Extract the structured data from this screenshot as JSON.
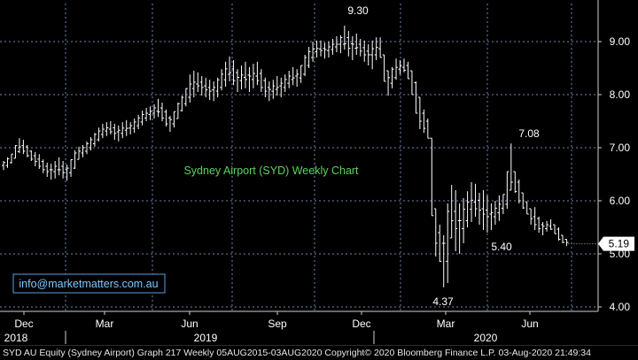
{
  "colors": {
    "background": "#000000",
    "bars": "#ffffff",
    "grid": "#6e86b8",
    "axis_text": "#ffffff",
    "chart_title": "#5dd15d",
    "url_text": "#7fc8ff",
    "url_border": "#5aa0e0",
    "last_price_box": "#ffffff",
    "last_price_text": "#000000"
  },
  "chart_data": {
    "type": "ohlc",
    "title": "Sydney Airport (SYD) Weekly Chart",
    "watermark": "info@marketmatters.com.au",
    "ylim": [
      3.85,
      9.45
    ],
    "y_ticks": [
      "4.00",
      "5.00",
      "6.00",
      "7.00",
      "8.00",
      "9.00"
    ],
    "y_tick_values": [
      4,
      5,
      6,
      7,
      8,
      9
    ],
    "last_price": "5.19",
    "last_price_value": 5.19,
    "x_month_labels": [
      "Dec",
      "Mar",
      "Jun",
      "Sep",
      "Dec",
      "Mar",
      "Jun"
    ],
    "x_year_labels": [
      "2018",
      "2019",
      "2020"
    ],
    "annotations": [
      {
        "text": "9.30",
        "value": 9.3,
        "week": 99
      },
      {
        "text": "7.08",
        "value": 7.08,
        "week": 149
      },
      {
        "text": "5.40",
        "value": 5.4,
        "week": 140
      },
      {
        "text": "4.37",
        "value": 4.37,
        "week": 127
      }
    ],
    "series": [
      {
        "bars": [
          [
            6.58,
            6.75
          ],
          [
            6.62,
            6.82
          ],
          [
            6.7,
            6.88
          ],
          [
            6.8,
            7.05
          ],
          [
            6.9,
            7.18
          ],
          [
            6.88,
            7.15
          ],
          [
            6.82,
            7.05
          ],
          [
            6.75,
            6.95
          ],
          [
            6.65,
            6.92
          ],
          [
            6.6,
            6.88
          ],
          [
            6.52,
            6.78
          ],
          [
            6.45,
            6.72
          ],
          [
            6.4,
            6.7
          ],
          [
            6.42,
            6.75
          ],
          [
            6.48,
            6.82
          ],
          [
            6.42,
            6.75
          ],
          [
            6.38,
            6.68
          ],
          [
            6.45,
            6.78
          ],
          [
            6.6,
            6.95
          ],
          [
            6.78,
            7.02
          ],
          [
            6.82,
            7.05
          ],
          [
            6.88,
            7.12
          ],
          [
            6.95,
            7.2
          ],
          [
            7.02,
            7.28
          ],
          [
            7.12,
            7.38
          ],
          [
            7.18,
            7.45
          ],
          [
            7.22,
            7.48
          ],
          [
            7.25,
            7.5
          ],
          [
            7.15,
            7.45
          ],
          [
            7.12,
            7.42
          ],
          [
            7.18,
            7.48
          ],
          [
            7.22,
            7.52
          ],
          [
            7.25,
            7.48
          ],
          [
            7.28,
            7.55
          ],
          [
            7.35,
            7.62
          ],
          [
            7.42,
            7.7
          ],
          [
            7.5,
            7.75
          ],
          [
            7.52,
            7.78
          ],
          [
            7.55,
            7.82
          ],
          [
            7.58,
            7.92
          ],
          [
            7.5,
            7.85
          ],
          [
            7.4,
            7.72
          ],
          [
            7.3,
            7.6
          ],
          [
            7.38,
            7.68
          ],
          [
            7.55,
            7.85
          ],
          [
            7.68,
            7.98
          ],
          [
            7.78,
            8.12
          ],
          [
            7.85,
            8.38
          ],
          [
            7.95,
            8.45
          ],
          [
            8.05,
            8.42
          ],
          [
            7.98,
            8.35
          ],
          [
            7.95,
            8.32
          ],
          [
            7.9,
            8.28
          ],
          [
            7.88,
            8.25
          ],
          [
            7.95,
            8.32
          ],
          [
            8.08,
            8.48
          ],
          [
            8.15,
            8.62
          ],
          [
            8.25,
            8.72
          ],
          [
            8.18,
            8.65
          ],
          [
            8.05,
            8.48
          ],
          [
            8.1,
            8.55
          ],
          [
            8.12,
            8.62
          ],
          [
            8.05,
            8.52
          ],
          [
            8.12,
            8.58
          ],
          [
            8.18,
            8.62
          ],
          [
            8.05,
            8.48
          ],
          [
            7.95,
            8.32
          ],
          [
            7.88,
            8.25
          ],
          [
            7.92,
            8.28
          ],
          [
            7.98,
            8.35
          ],
          [
            7.95,
            8.32
          ],
          [
            8.05,
            8.38
          ],
          [
            8.12,
            8.45
          ],
          [
            8.18,
            8.52
          ],
          [
            8.15,
            8.48
          ],
          [
            8.22,
            8.55
          ],
          [
            8.35,
            8.75
          ],
          [
            8.5,
            8.9
          ],
          [
            8.62,
            9.0
          ],
          [
            8.7,
            9.02
          ],
          [
            8.72,
            9.02
          ],
          [
            8.68,
            8.98
          ],
          [
            8.7,
            9.0
          ],
          [
            8.75,
            9.05
          ],
          [
            8.8,
            9.1
          ],
          [
            8.78,
            9.12
          ],
          [
            8.85,
            9.3
          ],
          [
            8.72,
            9.2
          ],
          [
            8.65,
            9.1
          ],
          [
            8.75,
            9.15
          ],
          [
            8.72,
            9.05
          ],
          [
            8.62,
            9.02
          ],
          [
            8.55,
            8.95
          ],
          [
            8.48,
            9.02
          ],
          [
            8.65,
            9.08
          ],
          [
            8.7,
            9.08
          ],
          [
            8.25,
            8.75
          ],
          [
            7.98,
            8.45
          ],
          [
            8.12,
            8.52
          ],
          [
            8.28,
            8.68
          ],
          [
            8.38,
            8.65
          ],
          [
            8.42,
            8.68
          ],
          [
            8.3,
            8.62
          ],
          [
            8.0,
            8.45
          ],
          [
            7.65,
            8.25
          ],
          [
            7.35,
            7.95
          ],
          [
            7.28,
            7.72
          ],
          [
            7.18,
            7.55
          ],
          [
            5.72,
            7.18
          ],
          [
            4.95,
            5.85
          ],
          [
            4.85,
            5.55
          ],
          [
            4.37,
            5.35
          ],
          [
            4.45,
            5.95
          ],
          [
            5.3,
            6.3
          ],
          [
            5.05,
            6.2
          ],
          [
            5.0,
            5.95
          ],
          [
            5.2,
            6.05
          ],
          [
            5.5,
            6.18
          ],
          [
            5.6,
            6.35
          ],
          [
            5.7,
            6.32
          ],
          [
            5.55,
            6.15
          ],
          [
            5.45,
            6.2
          ],
          [
            5.4,
            6.1
          ],
          [
            5.45,
            5.95
          ],
          [
            5.55,
            6.0
          ],
          [
            5.62,
            6.1
          ],
          [
            5.75,
            6.12
          ],
          [
            5.85,
            6.55
          ],
          [
            6.2,
            7.08
          ],
          [
            6.15,
            6.55
          ],
          [
            5.95,
            6.4
          ],
          [
            5.85,
            6.15
          ],
          [
            5.75,
            5.98
          ],
          [
            5.55,
            5.85
          ],
          [
            5.45,
            5.88
          ],
          [
            5.4,
            5.7
          ],
          [
            5.35,
            5.6
          ],
          [
            5.42,
            5.62
          ],
          [
            5.45,
            5.65
          ],
          [
            5.38,
            5.55
          ],
          [
            5.25,
            5.5
          ],
          [
            5.2,
            5.35
          ],
          [
            5.15,
            5.28
          ]
        ]
      }
    ]
  }
}
